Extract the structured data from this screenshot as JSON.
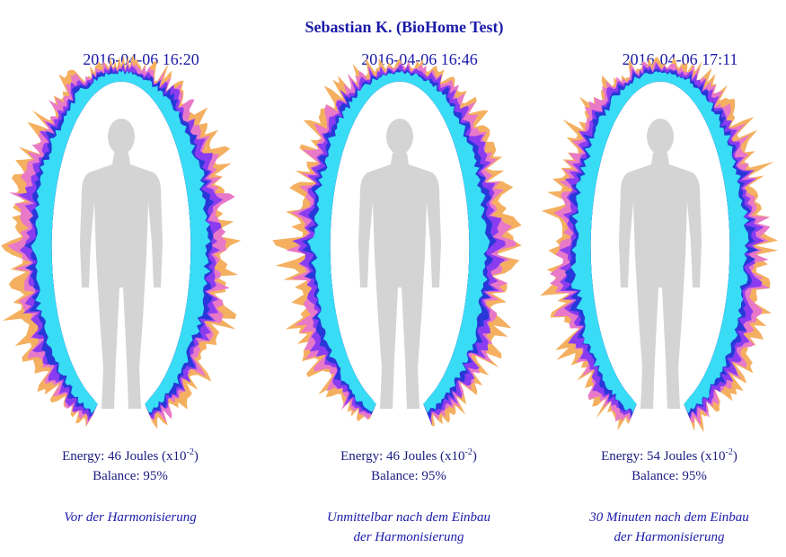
{
  "title": "Sebastian K. (BioHome Test)",
  "panels": [
    {
      "timestamp": "2016-04-06  16:20",
      "energy": "Energy: 46 Joules (x10",
      "energy_exponent": "-2",
      "energy_close": ")",
      "balance": "Balance: 95%",
      "caption": [
        "Vor der Harmonisierung"
      ]
    },
    {
      "timestamp": "2016-04-06  16:46",
      "energy": "Energy: 46 Joules (x10",
      "energy_exponent": "-2",
      "energy_close": ")",
      "balance": "Balance: 95%",
      "caption": [
        "Unmittelbar nach dem Einbau",
        "der Harmonisierung"
      ]
    },
    {
      "timestamp": "2016-04-06  17:11",
      "energy": "Energy: 54 Joules (x10",
      "energy_exponent": "-2",
      "energy_close": ")",
      "balance": "Balance: 95%",
      "caption": [
        "30 Minuten nach dem Einbau",
        "der Harmonisierung"
      ]
    }
  ]
}
